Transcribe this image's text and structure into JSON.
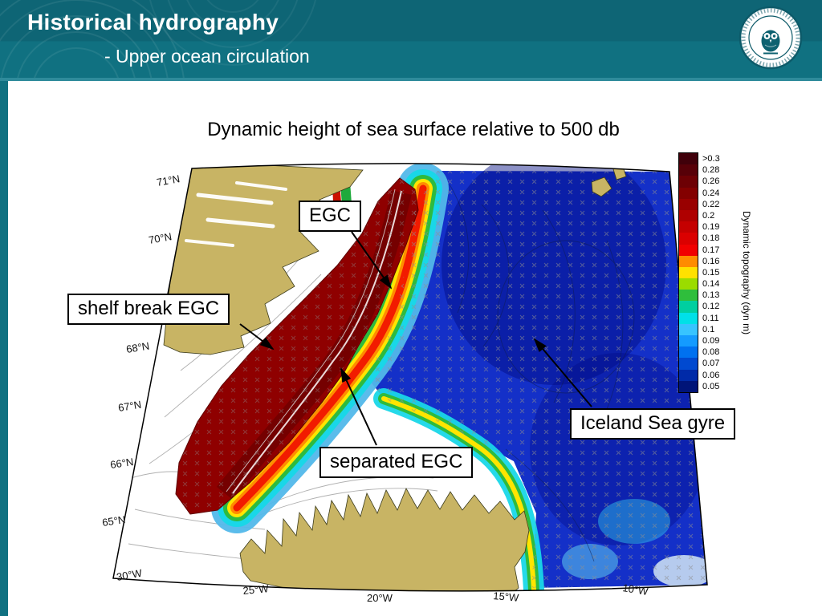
{
  "slide": {
    "header": {
      "title": "Historical hydrography",
      "subtitle": "- Upper ocean circulation"
    },
    "logo": {
      "name": "university-of-bergen-seal"
    }
  },
  "figure": {
    "title": "Dynamic height of sea surface relative to 500 db",
    "annotations": {
      "egc": "EGC",
      "shelf_break": "shelf break EGC",
      "separated": "separated EGC",
      "gyre": "Iceland Sea gyre"
    },
    "colorbar": {
      "axis_label": "Dynamic topography (dyn m)",
      "ticks": [
        ">0.3",
        "0.28",
        "0.26",
        "0.24",
        "0.22",
        "0.2",
        "0.19",
        "0.18",
        "0.17",
        "0.16",
        "0.15",
        "0.14",
        "0.13",
        "0.12",
        "0.11",
        "0.1",
        "0.09",
        "0.08",
        "0.07",
        "0.06",
        "0.05"
      ],
      "colors": [
        "#40000a",
        "#570008",
        "#6d0004",
        "#830000",
        "#990000",
        "#af0000",
        "#c50000",
        "#db0000",
        "#f10000",
        "#ff8c00",
        "#ffe100",
        "#9bdc00",
        "#2fbe3c",
        "#00cfa0",
        "#00e0e8",
        "#37c4ff",
        "#149bff",
        "#0071f0",
        "#0049d0",
        "#002aa8",
        "#001478"
      ]
    },
    "axes": {
      "lat_ticks": [
        "71°N",
        "70°N",
        "68°N",
        "67°N",
        "66°N",
        "65°N"
      ],
      "lon_ticks": [
        "30°W",
        "25°W",
        "20°W",
        "15°W",
        "10°W"
      ]
    }
  },
  "palette": {
    "header-teal": "#0e6575",
    "header-teal-light": "#107181",
    "accent-line": "#2f8b9b",
    "land-tan": "#c8b464",
    "egc-red": "#8f0000",
    "ocean-blue": "#1430c8"
  }
}
